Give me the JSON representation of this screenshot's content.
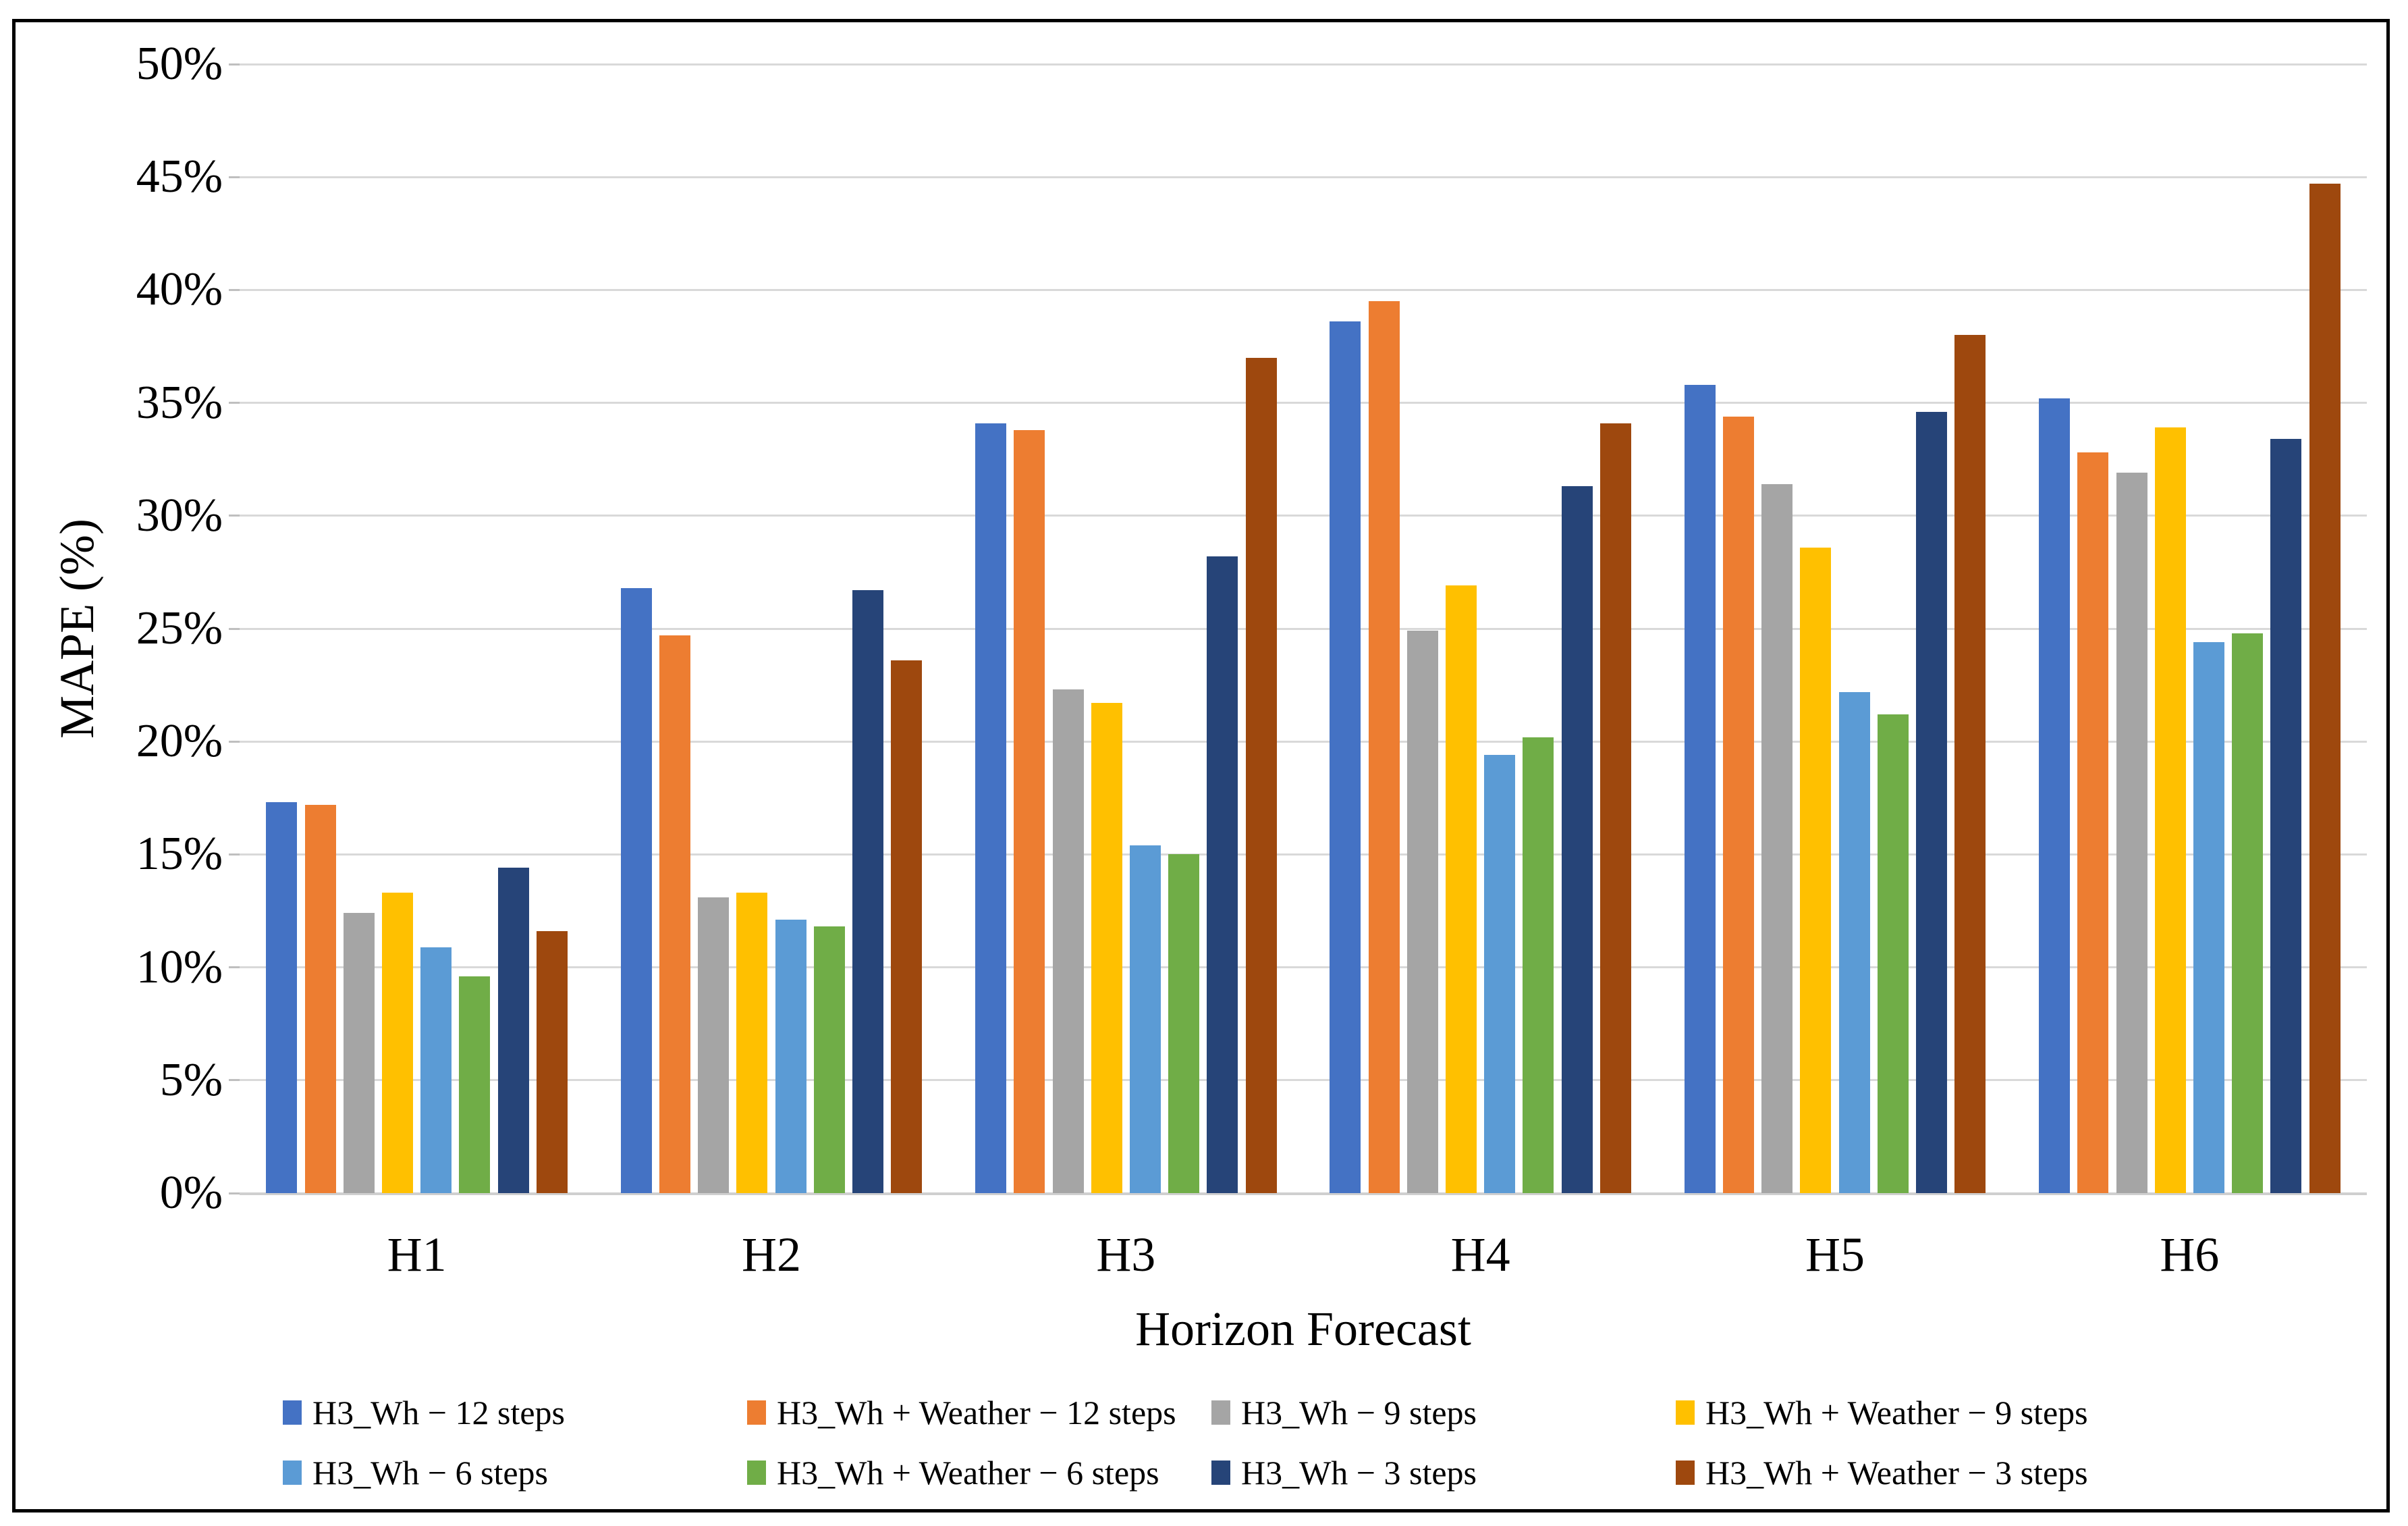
{
  "figure": {
    "background": "#FFFFFF",
    "border_color": "#000000",
    "grid_color": "#D9D9D9",
    "axis_line_color": "#CFCFCF",
    "text_color": "#000000"
  },
  "chart_data": {
    "type": "bar",
    "title": "",
    "xlabel": "Horizon Forecast",
    "ylabel": "MAPE (%)",
    "ylim": [
      0,
      50
    ],
    "y_tick_step": 5,
    "y_tick_labels": [
      "0%",
      "5%",
      "10%",
      "15%",
      "20%",
      "25%",
      "30%",
      "35%",
      "40%",
      "45%",
      "50%"
    ],
    "grid": true,
    "legend_position": "bottom",
    "categories": [
      "H1",
      "H2",
      "H3",
      "H4",
      "H5",
      "H6"
    ],
    "series": [
      {
        "name": "H3_Wh − 12 steps",
        "color": "#4472C4",
        "values": [
          17.3,
          26.8,
          34.1,
          38.6,
          35.8,
          35.2
        ]
      },
      {
        "name": "H3_Wh + Weather − 12 steps",
        "color": "#ED7D31",
        "values": [
          17.2,
          24.7,
          33.8,
          39.5,
          34.4,
          32.8
        ]
      },
      {
        "name": "H3_Wh − 9 steps",
        "color": "#A5A5A5",
        "values": [
          12.4,
          13.1,
          22.3,
          24.9,
          31.4,
          31.9
        ]
      },
      {
        "name": "H3_Wh + Weather − 9 steps",
        "color": "#FFC000",
        "values": [
          13.3,
          13.3,
          21.7,
          26.9,
          28.6,
          33.9
        ]
      },
      {
        "name": "H3_Wh − 6 steps",
        "color": "#5B9BD5",
        "values": [
          10.9,
          12.1,
          15.4,
          19.4,
          22.2,
          24.4
        ]
      },
      {
        "name": "H3_Wh + Weather − 6 steps",
        "color": "#70AD47",
        "values": [
          9.6,
          11.8,
          15.0,
          20.2,
          21.2,
          24.8
        ]
      },
      {
        "name": "H3_Wh − 3 steps",
        "color": "#264478",
        "values": [
          14.4,
          26.7,
          28.2,
          31.3,
          34.6,
          33.4
        ]
      },
      {
        "name": "H3_Wh + Weather − 3 steps",
        "color": "#9E480E",
        "values": [
          11.6,
          23.6,
          37.0,
          34.1,
          38.0,
          44.7
        ]
      }
    ]
  }
}
